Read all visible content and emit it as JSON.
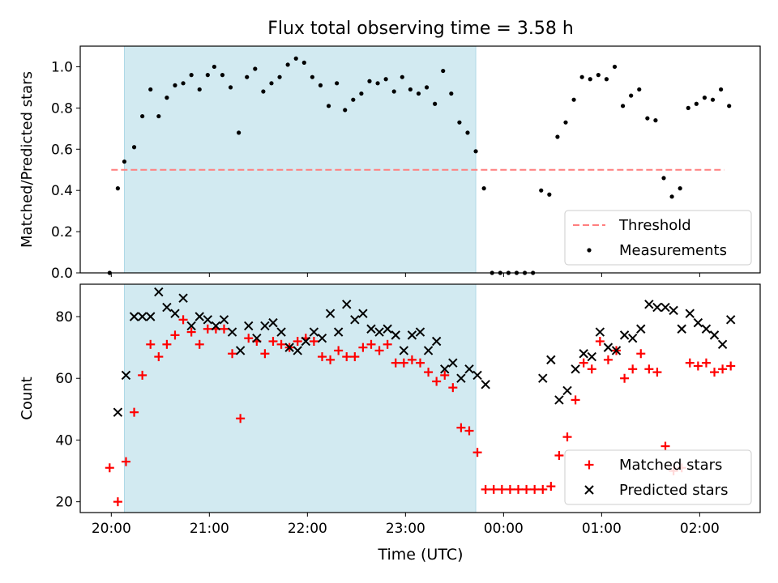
{
  "title": "Flux total observing time = 3.58 h",
  "xlabel": "Time (UTC)",
  "x_ticks": [
    "20:00",
    "21:00",
    "22:00",
    "23:00",
    "00:00",
    "01:00",
    "02:00"
  ],
  "colors": {
    "shade": "#add8e6",
    "threshold": "#ff7f7f",
    "measurement": "#000000",
    "matched": "#ff0000",
    "predicted": "#000000"
  },
  "chart_data": [
    {
      "type": "scatter",
      "ylabel": "Matched/Predicted stars",
      "xlim": [
        "19:41",
        "02:37"
      ],
      "ylim": [
        0,
        1.1
      ],
      "y_ticks": [
        "0.0",
        "0.2",
        "0.4",
        "0.6",
        "0.8",
        "1.0"
      ],
      "legend_position": "lower-right",
      "shaded_span": [
        "20:08",
        "23:43"
      ],
      "threshold": {
        "name": "Threshold",
        "value": 0.5,
        "x_range": [
          "20:00",
          "02:15"
        ]
      },
      "series": [
        {
          "name": "Measurements",
          "points": [
            [
              "19:59",
              0.0
            ],
            [
              "20:04",
              0.41
            ],
            [
              "20:08",
              0.54
            ],
            [
              "20:14",
              0.61
            ],
            [
              "20:19",
              0.76
            ],
            [
              "20:24",
              0.89
            ],
            [
              "20:29",
              0.76
            ],
            [
              "20:34",
              0.85
            ],
            [
              "20:39",
              0.91
            ],
            [
              "20:44",
              0.92
            ],
            [
              "20:49",
              0.96
            ],
            [
              "20:54",
              0.89
            ],
            [
              "20:59",
              0.96
            ],
            [
              "21:03",
              1.0
            ],
            [
              "21:08",
              0.96
            ],
            [
              "21:13",
              0.9
            ],
            [
              "21:18",
              0.68
            ],
            [
              "21:23",
              0.95
            ],
            [
              "21:28",
              0.99
            ],
            [
              "21:33",
              0.88
            ],
            [
              "21:38",
              0.92
            ],
            [
              "21:43",
              0.95
            ],
            [
              "21:48",
              1.01
            ],
            [
              "21:53",
              1.04
            ],
            [
              "21:58",
              1.02
            ],
            [
              "22:03",
              0.95
            ],
            [
              "22:08",
              0.91
            ],
            [
              "22:13",
              0.81
            ],
            [
              "22:18",
              0.92
            ],
            [
              "22:23",
              0.79
            ],
            [
              "22:28",
              0.84
            ],
            [
              "22:33",
              0.87
            ],
            [
              "22:38",
              0.93
            ],
            [
              "22:43",
              0.92
            ],
            [
              "22:48",
              0.94
            ],
            [
              "22:53",
              0.88
            ],
            [
              "22:58",
              0.95
            ],
            [
              "23:03",
              0.89
            ],
            [
              "23:08",
              0.87
            ],
            [
              "23:13",
              0.9
            ],
            [
              "23:18",
              0.82
            ],
            [
              "23:23",
              0.98
            ],
            [
              "23:28",
              0.87
            ],
            [
              "23:33",
              0.73
            ],
            [
              "23:38",
              0.68
            ],
            [
              "23:43",
              0.59
            ],
            [
              "23:48",
              0.41
            ],
            [
              "23:53",
              0.0
            ],
            [
              "23:58",
              0.0
            ],
            [
              "00:03",
              0.0
            ],
            [
              "00:08",
              0.0
            ],
            [
              "00:13",
              0.0
            ],
            [
              "00:18",
              0.0
            ],
            [
              "00:23",
              0.4
            ],
            [
              "00:28",
              0.38
            ],
            [
              "00:33",
              0.66
            ],
            [
              "00:38",
              0.73
            ],
            [
              "00:43",
              0.84
            ],
            [
              "00:48",
              0.95
            ],
            [
              "00:53",
              0.94
            ],
            [
              "00:58",
              0.96
            ],
            [
              "01:03",
              0.94
            ],
            [
              "01:08",
              1.0
            ],
            [
              "01:13",
              0.81
            ],
            [
              "01:18",
              0.86
            ],
            [
              "01:23",
              0.89
            ],
            [
              "01:28",
              0.75
            ],
            [
              "01:33",
              0.74
            ],
            [
              "01:38",
              0.46
            ],
            [
              "01:43",
              0.37
            ],
            [
              "01:48",
              0.41
            ],
            [
              "01:53",
              0.8
            ],
            [
              "01:58",
              0.82
            ],
            [
              "02:03",
              0.85
            ],
            [
              "02:08",
              0.84
            ],
            [
              "02:13",
              0.89
            ],
            [
              "02:18",
              0.81
            ]
          ]
        }
      ]
    },
    {
      "type": "scatter",
      "ylabel": "Count",
      "xlabel": "Time (UTC)",
      "xlim": [
        "19:41",
        "02:37"
      ],
      "ylim": [
        16.5,
        90.5
      ],
      "y_ticks": [
        "20",
        "40",
        "60",
        "80"
      ],
      "legend_position": "lower-right",
      "shaded_span": [
        "20:08",
        "23:43"
      ],
      "series": [
        {
          "name": "Matched stars",
          "marker": "+",
          "points": [
            [
              "19:59",
              31
            ],
            [
              "20:04",
              20
            ],
            [
              "20:09",
              33
            ],
            [
              "20:14",
              49
            ],
            [
              "20:19",
              61
            ],
            [
              "20:24",
              71
            ],
            [
              "20:29",
              67
            ],
            [
              "20:34",
              71
            ],
            [
              "20:39",
              74
            ],
            [
              "20:44",
              79
            ],
            [
              "20:49",
              75
            ],
            [
              "20:54",
              71
            ],
            [
              "20:59",
              76
            ],
            [
              "21:04",
              76
            ],
            [
              "21:09",
              76
            ],
            [
              "21:14",
              68
            ],
            [
              "21:19",
              47
            ],
            [
              "21:24",
              73
            ],
            [
              "21:29",
              72
            ],
            [
              "21:34",
              68
            ],
            [
              "21:39",
              72
            ],
            [
              "21:44",
              71
            ],
            [
              "21:49",
              70
            ],
            [
              "21:54",
              72
            ],
            [
              "21:59",
              73
            ],
            [
              "22:04",
              72
            ],
            [
              "22:09",
              67
            ],
            [
              "22:14",
              66
            ],
            [
              "22:19",
              69
            ],
            [
              "22:24",
              67
            ],
            [
              "22:29",
              67
            ],
            [
              "22:34",
              70
            ],
            [
              "22:39",
              71
            ],
            [
              "22:44",
              69
            ],
            [
              "22:49",
              71
            ],
            [
              "22:54",
              65
            ],
            [
              "22:59",
              65
            ],
            [
              "23:04",
              66
            ],
            [
              "23:09",
              65
            ],
            [
              "23:14",
              62
            ],
            [
              "23:19",
              59
            ],
            [
              "23:24",
              61
            ],
            [
              "23:29",
              57
            ],
            [
              "23:34",
              44
            ],
            [
              "23:39",
              43
            ],
            [
              "23:44",
              36
            ],
            [
              "23:49",
              24
            ],
            [
              "23:54",
              24
            ],
            [
              "23:59",
              24
            ],
            [
              "00:04",
              24
            ],
            [
              "00:09",
              24
            ],
            [
              "00:14",
              24
            ],
            [
              "00:19",
              24
            ],
            [
              "00:24",
              24
            ],
            [
              "00:29",
              25
            ],
            [
              "00:34",
              35
            ],
            [
              "00:39",
              41
            ],
            [
              "00:44",
              53
            ],
            [
              "00:49",
              65
            ],
            [
              "00:54",
              63
            ],
            [
              "00:59",
              72
            ],
            [
              "01:04",
              66
            ],
            [
              "01:09",
              69
            ],
            [
              "01:14",
              60
            ],
            [
              "01:19",
              63
            ],
            [
              "01:24",
              68
            ],
            [
              "01:29",
              63
            ],
            [
              "01:34",
              62
            ],
            [
              "01:39",
              38
            ],
            [
              "01:44",
              30
            ],
            [
              "01:49",
              31
            ],
            [
              "01:54",
              65
            ],
            [
              "01:59",
              64
            ],
            [
              "02:04",
              65
            ],
            [
              "02:09",
              62
            ],
            [
              "02:14",
              63
            ],
            [
              "02:19",
              64
            ]
          ]
        },
        {
          "name": "Predicted stars",
          "marker": "x",
          "points": [
            [
              "20:04",
              49
            ],
            [
              "20:09",
              61
            ],
            [
              "20:14",
              80
            ],
            [
              "20:19",
              80
            ],
            [
              "20:24",
              80
            ],
            [
              "20:29",
              88
            ],
            [
              "20:34",
              83
            ],
            [
              "20:39",
              81
            ],
            [
              "20:44",
              86
            ],
            [
              "20:49",
              77
            ],
            [
              "20:54",
              80
            ],
            [
              "20:59",
              79
            ],
            [
              "21:04",
              77
            ],
            [
              "21:09",
              79
            ],
            [
              "21:14",
              75
            ],
            [
              "21:19",
              69
            ],
            [
              "21:24",
              77
            ],
            [
              "21:29",
              73
            ],
            [
              "21:34",
              77
            ],
            [
              "21:39",
              78
            ],
            [
              "21:44",
              75
            ],
            [
              "21:49",
              70
            ],
            [
              "21:54",
              69
            ],
            [
              "21:59",
              72
            ],
            [
              "22:04",
              75
            ],
            [
              "22:09",
              73
            ],
            [
              "22:14",
              81
            ],
            [
              "22:19",
              75
            ],
            [
              "22:24",
              84
            ],
            [
              "22:29",
              79
            ],
            [
              "22:34",
              81
            ],
            [
              "22:39",
              76
            ],
            [
              "22:44",
              75
            ],
            [
              "22:49",
              76
            ],
            [
              "22:54",
              74
            ],
            [
              "22:59",
              69
            ],
            [
              "23:04",
              74
            ],
            [
              "23:09",
              75
            ],
            [
              "23:14",
              69
            ],
            [
              "23:19",
              72
            ],
            [
              "23:24",
              63
            ],
            [
              "23:29",
              65
            ],
            [
              "23:34",
              60
            ],
            [
              "23:39",
              63
            ],
            [
              "23:44",
              61
            ],
            [
              "23:49",
              58
            ],
            [
              "00:24",
              60
            ],
            [
              "00:29",
              66
            ],
            [
              "00:34",
              53
            ],
            [
              "00:39",
              56
            ],
            [
              "00:44",
              63
            ],
            [
              "00:49",
              68
            ],
            [
              "00:54",
              67
            ],
            [
              "00:59",
              75
            ],
            [
              "01:04",
              70
            ],
            [
              "01:09",
              69
            ],
            [
              "01:14",
              74
            ],
            [
              "01:19",
              73
            ],
            [
              "01:24",
              76
            ],
            [
              "01:29",
              84
            ],
            [
              "01:34",
              83
            ],
            [
              "01:39",
              83
            ],
            [
              "01:44",
              82
            ],
            [
              "01:49",
              76
            ],
            [
              "01:54",
              81
            ],
            [
              "01:59",
              78
            ],
            [
              "02:04",
              76
            ],
            [
              "02:09",
              74
            ],
            [
              "02:14",
              71
            ],
            [
              "02:19",
              79
            ]
          ]
        }
      ]
    }
  ]
}
